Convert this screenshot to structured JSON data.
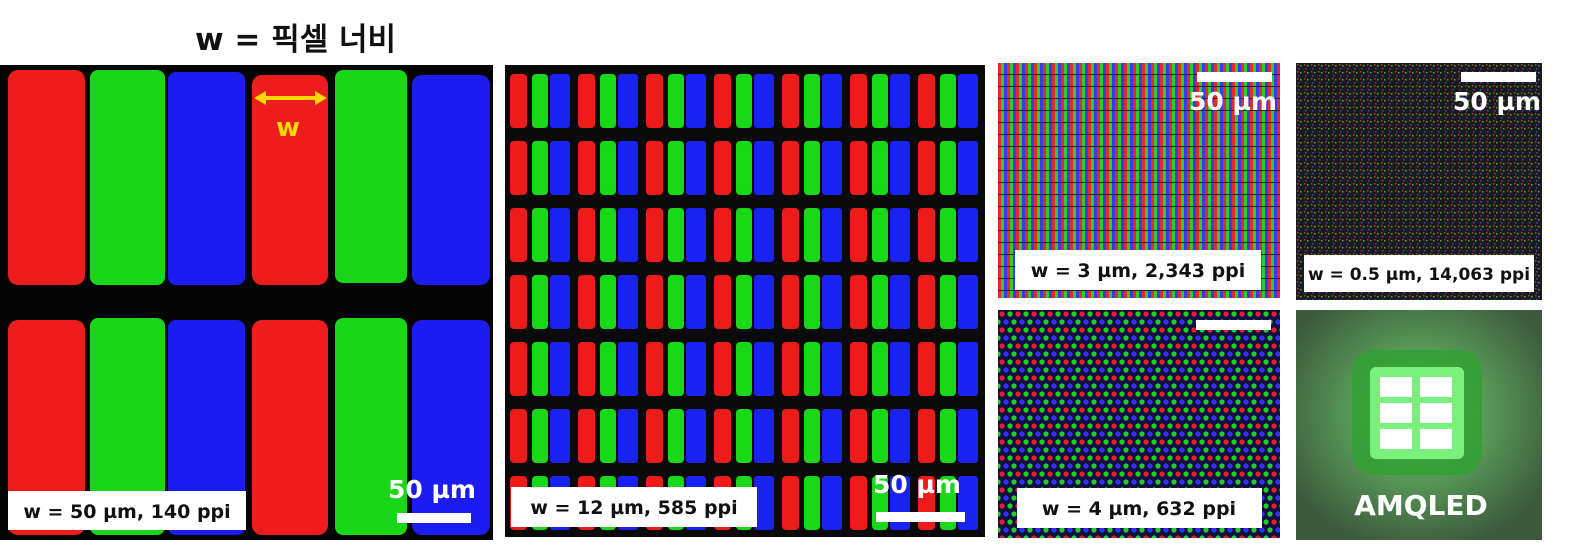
{
  "header": {
    "title": "w = 픽셀 너비"
  },
  "panels": [
    {
      "caption": "w = 50 µm, 140 ppi",
      "scale_label": "50 µm",
      "w_label": "w"
    },
    {
      "caption": "w = 12 µm, 585 ppi",
      "scale_label": "50 µm"
    },
    {
      "caption": "w = 3 µm, 2,343 ppi",
      "scale_label": "50 µm"
    },
    {
      "caption": "w = 0.5 µm, 14,063 ppi",
      "scale_label": "50 µm"
    },
    {
      "caption": "w = 4 µm, 632 ppi"
    },
    {
      "caption": "AMQLED"
    }
  ]
}
